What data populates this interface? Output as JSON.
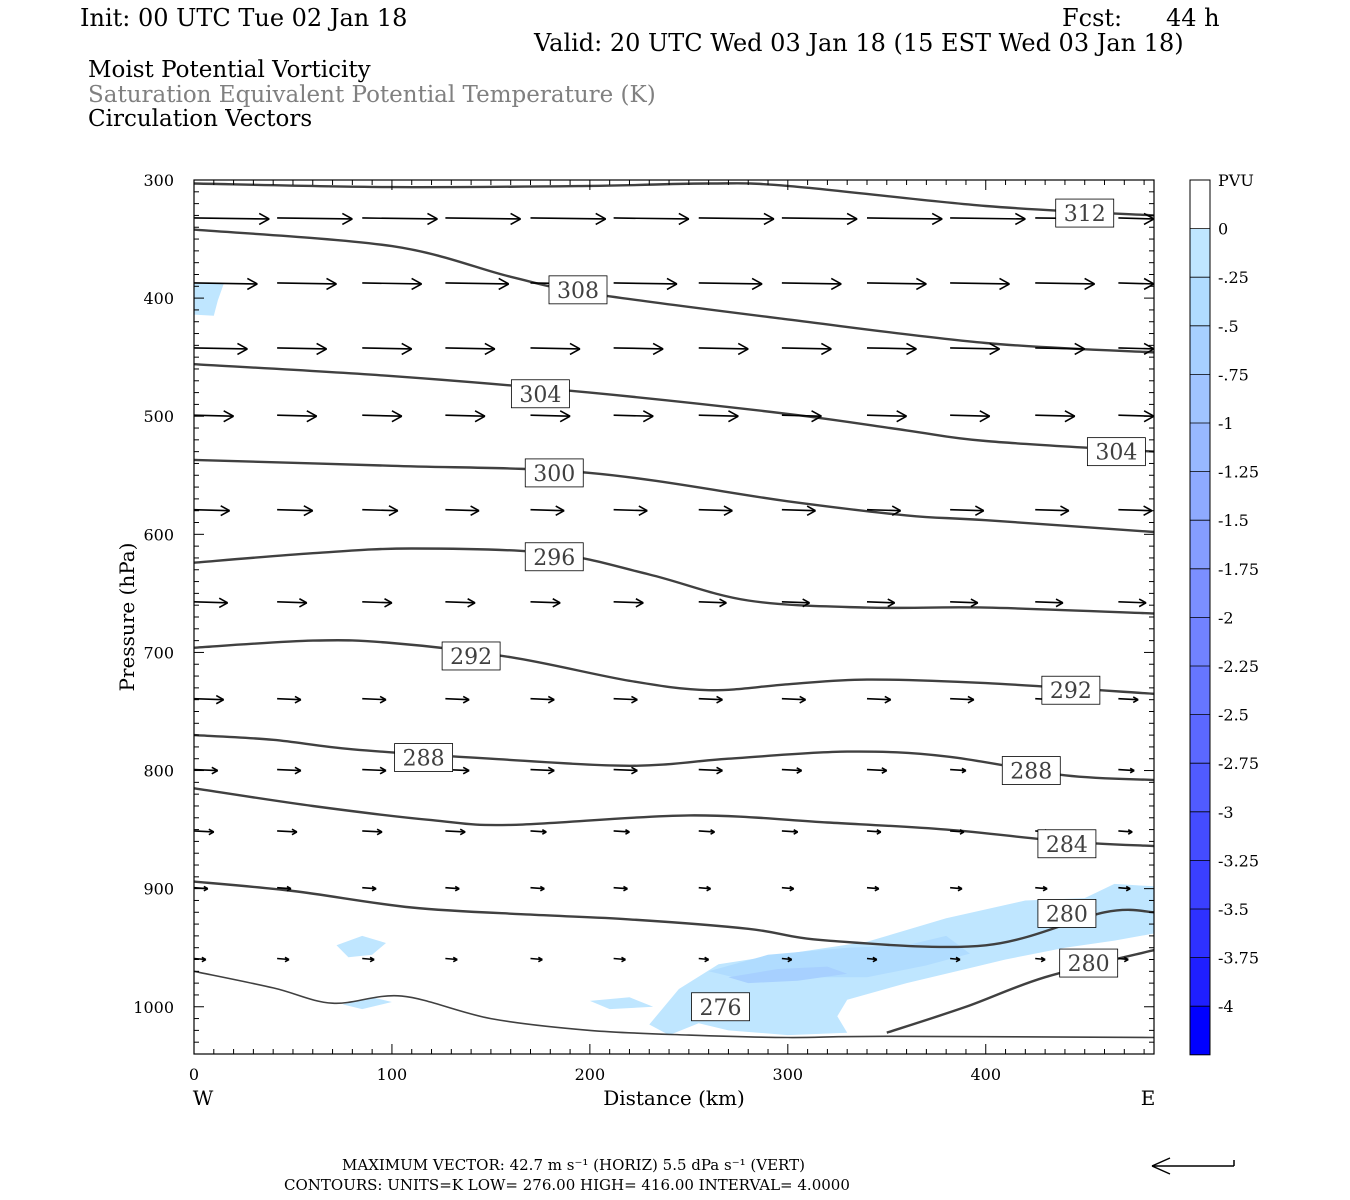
{
  "header": {
    "init": "Init: 00 UTC Tue 02 Jan 18",
    "fcst_label": "Fcst:",
    "fcst_value": "44 h",
    "valid": "Valid: 20 UTC Wed 03 Jan 18 (15 EST Wed 03 Jan 18)",
    "field1": "Moist Potential Vorticity",
    "field2": "Saturation Equivalent Potential Temperature (K)",
    "field3": "Circulation Vectors"
  },
  "colors": {
    "field2_text": "#808080",
    "contour": "#404040",
    "vector": "#000000",
    "pv_fill_light": "#bfe6ff",
    "pv_fill_mid": "#a6c8ff"
  },
  "footer": {
    "max_vector": "MAXIMUM VECTOR:  42.7 m s⁻¹ (HORIZ)            5.5 dPa s⁻¹ (VERT)",
    "contours": "CONTOURS:  UNITS=K  LOW=   276.00         HIGH=  416.00          INTERVAL=      4.0000",
    "reference_vector_icon": "left-arrow-icon"
  },
  "chart_data": {
    "type": "cross-section",
    "xlabel": "Distance (km)",
    "ylabel": "Pressure (hPa)",
    "x_left_label": "W",
    "x_right_label": "E",
    "xlim": [
      0,
      485
    ],
    "ylim": [
      300,
      1040
    ],
    "xticks": [
      0,
      100,
      200,
      300,
      400
    ],
    "yticks": [
      300,
      400,
      500,
      600,
      700,
      800,
      900,
      1000
    ],
    "grid": false,
    "colorbar": {
      "title": "PVU",
      "placement": "right",
      "labels": [
        "0",
        "-.25",
        "-.5",
        "-.75",
        "-1",
        "-1.25",
        "-1.5",
        "-1.75",
        "-2",
        "-2.25",
        "-2.5",
        "-2.75",
        "-3",
        "-3.25",
        "-3.5",
        "-3.75",
        "-4"
      ],
      "colors": [
        "#ffffff",
        "#bfe6ff",
        "#b0dcff",
        "#a7d0ff",
        "#a0c4ff",
        "#98b8ff",
        "#8eaaff",
        "#859dff",
        "#7b8fff",
        "#7182ff",
        "#6676ff",
        "#5b68ff",
        "#505bff",
        "#444cff",
        "#3a3fff",
        "#2e31ff",
        "#1f1fff",
        "#0000ff"
      ]
    },
    "contours": [
      {
        "value": 312,
        "label": "312",
        "label_at": [
          450,
          328
        ],
        "points": [
          [
            0,
            303
          ],
          [
            100,
            306
          ],
          [
            200,
            305
          ],
          [
            260,
            303
          ],
          [
            300,
            305
          ],
          [
            400,
            322
          ],
          [
            485,
            330
          ]
        ]
      },
      {
        "value": 308,
        "label": "308",
        "label_at": [
          194,
          393
        ],
        "points": [
          [
            0,
            342
          ],
          [
            100,
            356
          ],
          [
            160,
            382
          ],
          [
            200,
            396
          ],
          [
            300,
            418
          ],
          [
            400,
            438
          ],
          [
            485,
            446
          ]
        ]
      },
      {
        "value": 304,
        "label": "304",
        "label_at": [
          175,
          481
        ],
        "points": [
          [
            0,
            456
          ],
          [
            100,
            466
          ],
          [
            200,
            480
          ],
          [
            300,
            498
          ],
          [
            360,
            512
          ],
          [
            400,
            521
          ],
          [
            485,
            530
          ]
        ]
      },
      {
        "value": 304,
        "label": "304",
        "label_at": [
          466,
          530
        ],
        "points": []
      },
      {
        "value": 300,
        "label": "300",
        "label_at": [
          182,
          548
        ],
        "points": [
          [
            0,
            537
          ],
          [
            100,
            542
          ],
          [
            200,
            548
          ],
          [
            300,
            572
          ],
          [
            360,
            584
          ],
          [
            400,
            588
          ],
          [
            485,
            598
          ]
        ]
      },
      {
        "value": 296,
        "label": "296",
        "label_at": [
          182,
          619
        ],
        "points": [
          [
            0,
            624
          ],
          [
            60,
            616
          ],
          [
            110,
            612
          ],
          [
            180,
            616
          ],
          [
            230,
            634
          ],
          [
            280,
            656
          ],
          [
            340,
            662
          ],
          [
            400,
            662
          ],
          [
            485,
            667
          ]
        ]
      },
      {
        "value": 292,
        "label": "292",
        "label_at": [
          140,
          703
        ],
        "points": [
          [
            0,
            696
          ],
          [
            60,
            690
          ],
          [
            100,
            692
          ],
          [
            160,
            704
          ],
          [
            220,
            724
          ],
          [
            260,
            732
          ],
          [
            300,
            727
          ],
          [
            340,
            723
          ],
          [
            400,
            726
          ],
          [
            485,
            735
          ]
        ]
      },
      {
        "value": 292,
        "label": "292",
        "label_at": [
          443,
          732
        ],
        "points": []
      },
      {
        "value": 288,
        "label": "288",
        "label_at": [
          116,
          789
        ],
        "points": [
          [
            0,
            770
          ],
          [
            40,
            774
          ],
          [
            80,
            782
          ],
          [
            150,
            790
          ],
          [
            220,
            796
          ],
          [
            270,
            790
          ],
          [
            330,
            784
          ],
          [
            380,
            788
          ],
          [
            440,
            804
          ],
          [
            485,
            808
          ]
        ]
      },
      {
        "value": 288,
        "label": "288",
        "label_at": [
          423,
          800
        ],
        "points": []
      },
      {
        "value": 284,
        "label": "284",
        "label_at": [
          441,
          862
        ],
        "points": [
          [
            0,
            815
          ],
          [
            60,
            830
          ],
          [
            120,
            842
          ],
          [
            160,
            846
          ],
          [
            250,
            838
          ],
          [
            320,
            844
          ],
          [
            380,
            850
          ],
          [
            440,
            860
          ],
          [
            485,
            864
          ]
        ]
      },
      {
        "value": 280,
        "label": "280",
        "label_at": [
          441,
          921
        ],
        "points": [
          [
            0,
            894
          ],
          [
            50,
            902
          ],
          [
            110,
            916
          ],
          [
            170,
            922
          ],
          [
            220,
            926
          ],
          [
            280,
            934
          ],
          [
            320,
            944
          ],
          [
            400,
            948
          ],
          [
            460,
            920
          ],
          [
            485,
            920
          ]
        ]
      },
      {
        "value": 280,
        "label": "280",
        "label_at": [
          452,
          963
        ],
        "points": [
          [
            350,
            1022
          ],
          [
            390,
            1000
          ],
          [
            430,
            975
          ],
          [
            485,
            952
          ]
        ]
      },
      {
        "value": 276,
        "label": "276",
        "label_at": [
          266,
          1000
        ],
        "points": [
          [
            0,
            970
          ],
          [
            40,
            984
          ],
          [
            70,
            997
          ],
          [
            105,
            991
          ],
          [
            150,
            1010
          ],
          [
            200,
            1020
          ],
          [
            250,
            1024
          ],
          [
            300,
            1026
          ],
          [
            350,
            1025
          ],
          [
            485,
            1026
          ]
        ]
      }
    ],
    "vectors": [
      {
        "p": 333,
        "x": [
          0,
          42,
          85,
          127,
          170,
          212,
          255,
          297,
          340,
          382,
          425,
          467
        ],
        "len_km": [
          38,
          38,
          38,
          38,
          38,
          38,
          38,
          38,
          38,
          38,
          38,
          32
        ]
      },
      {
        "p": 388,
        "x": [
          0,
          42,
          85,
          127,
          170,
          212,
          255,
          297,
          340,
          382,
          425,
          467
        ],
        "len_km": [
          32,
          30,
          30,
          32,
          30,
          32,
          32,
          30,
          30,
          30,
          30,
          20
        ]
      },
      {
        "p": 443,
        "x": [
          0,
          42,
          85,
          127,
          170,
          212,
          255,
          297,
          340,
          382,
          425,
          467
        ],
        "len_km": [
          27,
          25,
          25,
          25,
          25,
          25,
          25,
          25,
          25,
          25,
          25,
          20
        ]
      },
      {
        "p": 500,
        "x": [
          0,
          42,
          85,
          127,
          170,
          212,
          255,
          297,
          340,
          382,
          425,
          467
        ],
        "len_km": [
          20,
          20,
          20,
          20,
          20,
          20,
          20,
          20,
          20,
          20,
          20,
          20
        ]
      },
      {
        "p": 580,
        "x": [
          0,
          42,
          85,
          127,
          170,
          212,
          255,
          297,
          340,
          382,
          425,
          467
        ],
        "len_km": [
          18,
          18,
          18,
          17,
          17,
          17,
          17,
          17,
          17,
          17,
          17,
          17
        ]
      },
      {
        "p": 658,
        "x": [
          0,
          42,
          85,
          127,
          170,
          212,
          255,
          297,
          340,
          382,
          425,
          467
        ],
        "len_km": [
          17,
          15,
          15,
          15,
          15,
          15,
          14,
          14,
          14,
          14,
          14,
          14
        ]
      },
      {
        "p": 740,
        "x": [
          0,
          42,
          85,
          127,
          170,
          212,
          255,
          297,
          340,
          382,
          425,
          467
        ],
        "len_km": [
          15,
          12,
          12,
          12,
          12,
          12,
          12,
          12,
          12,
          12,
          10,
          10
        ]
      },
      {
        "p": 800,
        "x": [
          0,
          42,
          85,
          127,
          170,
          212,
          255,
          297,
          340,
          382,
          425,
          467
        ],
        "len_km": [
          12,
          12,
          12,
          12,
          12,
          12,
          12,
          10,
          10,
          8,
          8,
          8
        ]
      },
      {
        "p": 852,
        "x": [
          0,
          42,
          85,
          127,
          170,
          212,
          255,
          297,
          340,
          382,
          425,
          467
        ],
        "len_km": [
          10,
          10,
          10,
          10,
          8,
          8,
          8,
          8,
          7,
          7,
          7,
          7
        ]
      },
      {
        "p": 900,
        "x": [
          0,
          42,
          85,
          127,
          170,
          212,
          255,
          297,
          340,
          382,
          425,
          467
        ],
        "len_km": [
          7,
          7,
          7,
          7,
          7,
          7,
          6,
          6,
          6,
          6,
          6,
          6
        ]
      },
      {
        "p": 960,
        "x": [
          0,
          42,
          85,
          127,
          170,
          212,
          255,
          297,
          340,
          382,
          425,
          467
        ],
        "len_km": [
          6,
          6,
          6,
          6,
          6,
          6,
          5,
          5,
          5,
          5,
          5,
          5
        ]
      }
    ],
    "pv_regions": [
      {
        "level": "-.25",
        "points": [
          [
            0,
            388
          ],
          [
            15,
            388
          ],
          [
            12,
            402
          ],
          [
            10,
            415
          ],
          [
            0,
            414
          ]
        ]
      },
      {
        "level": "-.25",
        "points": [
          [
            72,
            948
          ],
          [
            85,
            940
          ],
          [
            97,
            946
          ],
          [
            90,
            956
          ],
          [
            78,
            958
          ]
        ]
      },
      {
        "level": "-.25",
        "points": [
          [
            75,
            998
          ],
          [
            90,
            992
          ],
          [
            100,
            996
          ],
          [
            85,
            1002
          ]
        ]
      },
      {
        "level": "-.25",
        "points": [
          [
            200,
            995
          ],
          [
            220,
            992
          ],
          [
            232,
            1000
          ],
          [
            210,
            1002
          ]
        ]
      },
      {
        "level": "-.25",
        "points": [
          [
            230,
            1015
          ],
          [
            245,
            985
          ],
          [
            265,
            964
          ],
          [
            300,
            955
          ],
          [
            340,
            945
          ],
          [
            380,
            925
          ],
          [
            420,
            910
          ],
          [
            450,
            908
          ],
          [
            465,
            896
          ],
          [
            485,
            898
          ],
          [
            485,
            938
          ],
          [
            465,
            944
          ],
          [
            440,
            950
          ],
          [
            410,
            960
          ],
          [
            390,
            968
          ],
          [
            360,
            980
          ],
          [
            330,
            994
          ],
          [
            325,
            1008
          ],
          [
            330,
            1022
          ],
          [
            300,
            1024
          ],
          [
            270,
            1020
          ],
          [
            255,
            1014
          ],
          [
            240,
            1024
          ]
        ]
      },
      {
        "level": "-.5",
        "points": [
          [
            260,
            970
          ],
          [
            290,
            956
          ],
          [
            330,
            950
          ],
          [
            360,
            948
          ],
          [
            380,
            940
          ],
          [
            392,
            955
          ],
          [
            370,
            965
          ],
          [
            340,
            975
          ],
          [
            310,
            975
          ],
          [
            280,
            978
          ]
        ]
      },
      {
        "level": "-.75",
        "points": [
          [
            270,
            975
          ],
          [
            295,
            968
          ],
          [
            320,
            966
          ],
          [
            330,
            972
          ],
          [
            305,
            978
          ],
          [
            280,
            980
          ]
        ]
      }
    ]
  }
}
